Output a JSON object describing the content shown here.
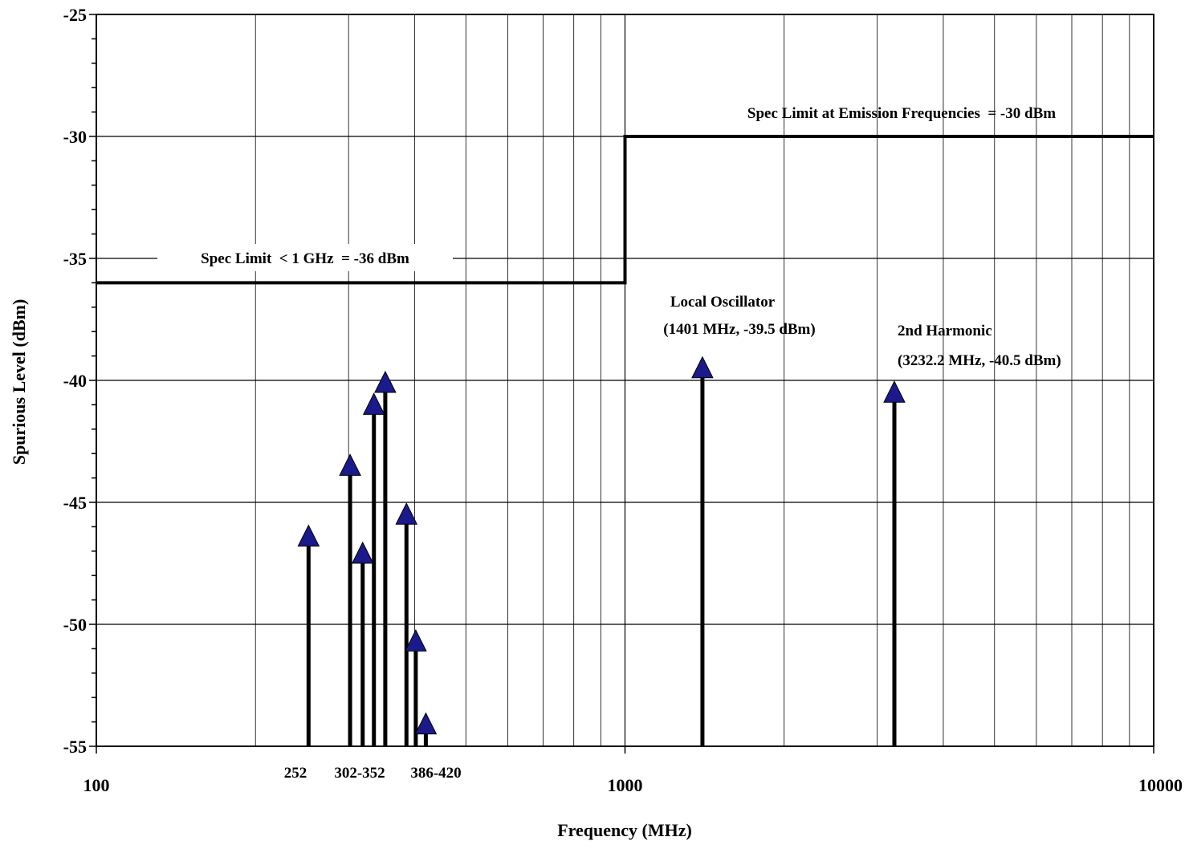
{
  "chart_data": {
    "type": "scatter",
    "x_scale": "log",
    "xlim": [
      100,
      10000
    ],
    "ylim": [
      -55,
      -25
    ],
    "xlabel": "Frequency (MHz)",
    "ylabel": "Spurious Level (dBm)",
    "x_tick_labels": [
      "100",
      "1000",
      "10000"
    ],
    "y_tick_labels": [
      "-25",
      "-30",
      "-35",
      "-40",
      "-45",
      "-50",
      "-55"
    ],
    "grid": true,
    "spec_limit": {
      "x": [
        100,
        1000,
        1000,
        10000
      ],
      "y": [
        -36,
        -36,
        -30,
        -30
      ]
    },
    "spurs": {
      "x": [
        252,
        302,
        319,
        335,
        352,
        386,
        402,
        420,
        1401,
        3232.2
      ],
      "y": [
        -46.4,
        -43.5,
        -47.1,
        -41.0,
        -40.1,
        -45.5,
        -50.7,
        -54.1,
        -39.5,
        -40.5
      ]
    },
    "annotations": [
      {
        "id": "spec_low",
        "text": "Spec Limit  < 1 GHz  = -36 dBm"
      },
      {
        "id": "spec_high",
        "text": "Spec Limit at Emission Frequencies  = -30 dBm"
      },
      {
        "id": "lo_title",
        "text": "Local Oscillator"
      },
      {
        "id": "lo_value",
        "text": "(1401 MHz, -39.5 dBm)"
      },
      {
        "id": "harm_title",
        "text": "2nd Harmonic"
      },
      {
        "id": "harm_value",
        "text": "(3232.2 MHz, -40.5 dBm)"
      }
    ],
    "frequency_labels": [
      "252",
      "302-352",
      "386-420"
    ]
  },
  "colors": {
    "marker": "#1a1a8c",
    "line": "#000000",
    "grid": "#000000"
  }
}
